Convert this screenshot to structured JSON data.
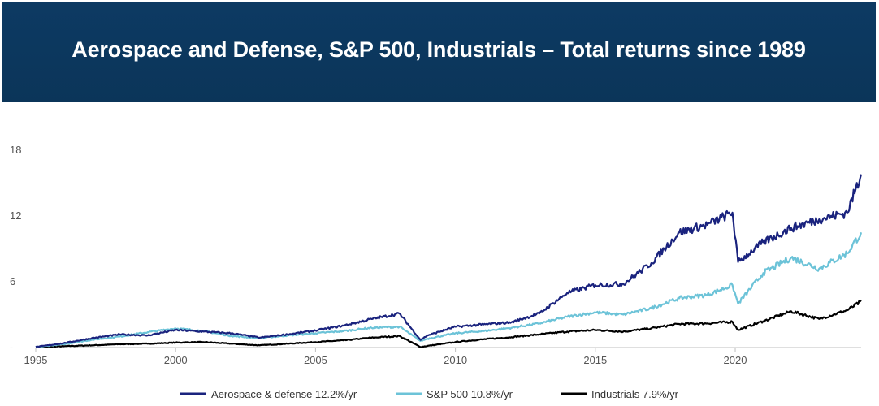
{
  "colors": {
    "banner_bg": "#0b3559",
    "banner_text": "#ffffff"
  },
  "chart_data": {
    "type": "line",
    "title": "Aerospace and Defense, S&P 500, Industrials – Total returns since 1989",
    "xlabel": "",
    "ylabel": "",
    "xlim": [
      1995,
      2024.5
    ],
    "ylim": [
      0,
      18
    ],
    "x_ticks": [
      1995,
      2000,
      2005,
      2010,
      2015,
      2020
    ],
    "y_ticks": [
      {
        "value": 0,
        "label": "-"
      },
      {
        "value": 6,
        "label": "6"
      },
      {
        "value": 12,
        "label": "12"
      },
      {
        "value": 18,
        "label": "18"
      }
    ],
    "grid": false,
    "legend_position": "bottom",
    "x": [
      1995,
      1996,
      1997,
      1998,
      1999,
      2000,
      2001,
      2002,
      2003,
      2004,
      2005,
      2006,
      2007,
      2008,
      2008.75,
      2009,
      2010,
      2011,
      2012,
      2013,
      2014,
      2015,
      2016,
      2017,
      2018,
      2019,
      2019.9,
      2020.1,
      2021,
      2022,
      2023,
      2024,
      2024.5
    ],
    "series": [
      {
        "name": "Aerospace & defense 12.2%/yr",
        "color": "#1a237e",
        "width": 2.2,
        "values": [
          0.05,
          0.4,
          0.85,
          1.2,
          1.1,
          1.6,
          1.45,
          1.3,
          0.9,
          1.2,
          1.55,
          2.0,
          2.6,
          3.1,
          0.7,
          1.1,
          1.9,
          2.1,
          2.3,
          3.1,
          5.0,
          5.7,
          5.8,
          7.7,
          10.5,
          11.2,
          12.3,
          7.8,
          9.6,
          10.9,
          11.7,
          12.3,
          15.8
        ]
      },
      {
        "name": "S&P 500 10.8%/yr",
        "color": "#6cc3d8",
        "width": 2.2,
        "values": [
          0.05,
          0.3,
          0.7,
          1.0,
          1.4,
          1.75,
          1.5,
          1.05,
          0.85,
          1.1,
          1.3,
          1.5,
          1.8,
          1.9,
          0.6,
          0.8,
          1.3,
          1.5,
          1.8,
          2.2,
          2.8,
          3.2,
          3.0,
          3.6,
          4.5,
          4.8,
          5.7,
          4.0,
          6.8,
          8.2,
          7.2,
          8.6,
          10.5
        ]
      },
      {
        "name": "Industrials 7.9%/yr",
        "color": "#000000",
        "width": 2.2,
        "values": [
          0.02,
          0.12,
          0.2,
          0.3,
          0.35,
          0.45,
          0.5,
          0.35,
          0.2,
          0.35,
          0.5,
          0.65,
          0.9,
          1.05,
          0.05,
          0.15,
          0.5,
          0.75,
          0.95,
          1.2,
          1.45,
          1.6,
          1.45,
          1.75,
          2.15,
          2.2,
          2.35,
          1.6,
          2.4,
          3.3,
          2.6,
          3.4,
          4.2
        ]
      }
    ]
  }
}
